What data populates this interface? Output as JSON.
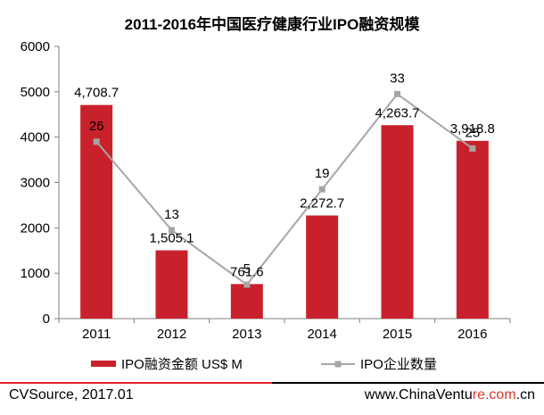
{
  "chart_data": {
    "type": "bar",
    "title": "2011-2016年中国医疗健康行业IPO融资规模",
    "categories": [
      "2011",
      "2012",
      "2013",
      "2014",
      "2015",
      "2016"
    ],
    "ylim": [
      0,
      6000
    ],
    "yticks": [
      "0",
      "1000",
      "2000",
      "3000",
      "4000",
      "5000",
      "6000"
    ],
    "grid": false,
    "legend_position": "bottom",
    "series": [
      {
        "name": "IPO融资金额 US$ M",
        "type": "bar",
        "color": "#c9212b",
        "values": [
          4708.7,
          1505.1,
          761.6,
          2272.7,
          4263.7,
          3918.8
        ],
        "labels": [
          "4,708.7",
          "1,505.1",
          "761.6",
          "2,272.7",
          "4,263.7",
          "3,918.8"
        ]
      },
      {
        "name": "IPO企业数量",
        "type": "line",
        "color": "#a6a6a6",
        "values": [
          26,
          13,
          5,
          19,
          33,
          25
        ],
        "labels": [
          "26",
          "13",
          "5",
          "19",
          "33",
          "25"
        ]
      }
    ]
  },
  "footer": {
    "source": "CVSource, 2017.01",
    "site": "www.ChinaVentu",
    "watermark": "re.com",
    "site_suffix": ".cn",
    "line_color": "#e3262f"
  }
}
